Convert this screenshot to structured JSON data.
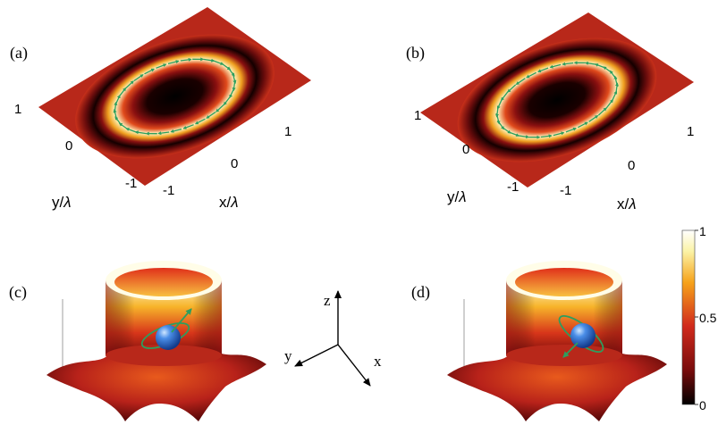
{
  "panels": {
    "a": {
      "label": "(a)"
    },
    "b": {
      "label": "(b)"
    },
    "c": {
      "label": "(c)"
    },
    "d": {
      "label": "(d)"
    }
  },
  "axes_top": {
    "y_ticks": [
      "1",
      "0",
      "-1"
    ],
    "x_ticks": [
      "-1",
      "0",
      "1"
    ],
    "y_label_var": "y/",
    "x_label_var": "x/",
    "lambda": "λ"
  },
  "triad": {
    "z": "z",
    "y": "y",
    "x": "x"
  },
  "colorbar": {
    "ticks": [
      "1",
      "0.5",
      "0"
    ],
    "colors": [
      "#000000",
      "#7a0c0c",
      "#d12a1c",
      "#f6a21a",
      "#fbf3a6",
      "#ffffff"
    ]
  },
  "colors": {
    "arrow": "#2e9e5e",
    "particle": "#2f6fd6"
  }
}
